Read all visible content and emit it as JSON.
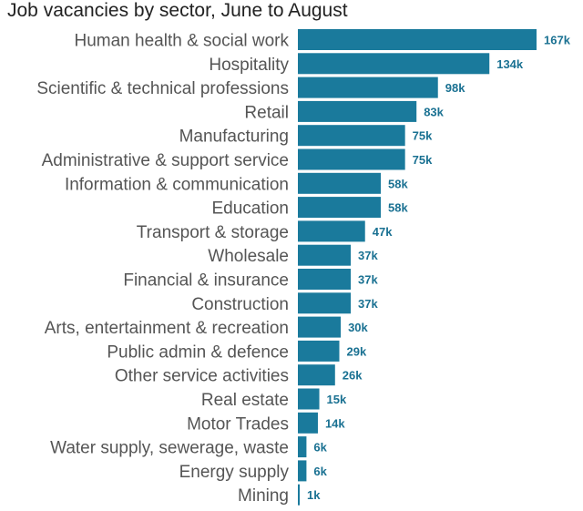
{
  "chart_data": {
    "type": "bar",
    "orientation": "horizontal",
    "title": "Job vacancies by sector, June to August",
    "bar_color": "#1a7a9c",
    "label_color": "#1a7192",
    "categories": [
      "Human health & social work",
      "Hospitality",
      "Scientific & technical professions",
      "Retail",
      "Manufacturing",
      "Administrative & support service",
      "Information & communication",
      "Education",
      "Transport & storage",
      "Wholesale",
      "Financial & insurance",
      "Construction",
      "Arts, entertainment & recreation",
      "Public admin & defence",
      "Other service activities",
      "Real estate",
      "Motor Trades",
      "Water supply, sewerage, waste",
      "Energy supply",
      "Mining"
    ],
    "values": [
      167,
      134,
      98,
      83,
      75,
      75,
      58,
      58,
      47,
      37,
      37,
      37,
      30,
      29,
      26,
      15,
      14,
      6,
      6,
      1
    ],
    "value_labels": [
      "167k",
      "134k",
      "98k",
      "83k",
      "75k",
      "75k",
      "58k",
      "58k",
      "47k",
      "37k",
      "37k",
      "37k",
      "30k",
      "29k",
      "26k",
      "15k",
      "14k",
      "6k",
      "6k",
      "1k"
    ],
    "xlim": [
      0,
      167
    ],
    "grid": false,
    "legend": "none"
  }
}
